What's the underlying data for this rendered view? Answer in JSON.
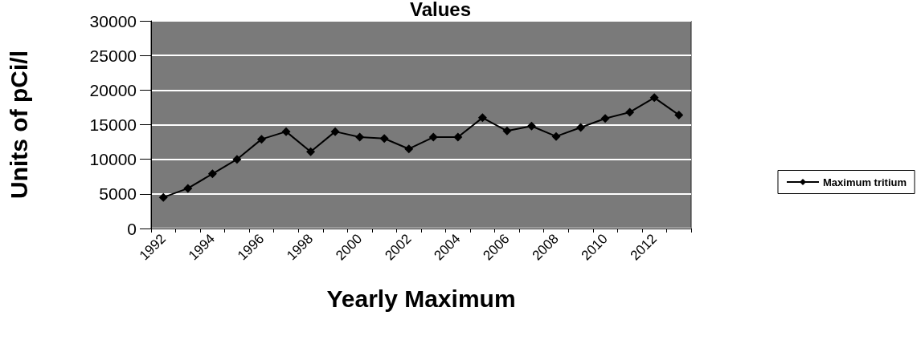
{
  "chart_data": {
    "type": "line",
    "title": "Values",
    "xlabel": "Yearly Maximum",
    "ylabel": "Units of pCi/l",
    "categories": [
      "1992",
      null,
      "1994",
      null,
      "1996",
      null,
      "1998",
      null,
      "2000",
      null,
      "2002",
      null,
      "2004",
      null,
      "2006",
      null,
      "2008",
      null,
      "2010",
      null,
      "2012",
      null
    ],
    "series": [
      {
        "name": "Maximum tritium",
        "color": "#000000",
        "values": [
          4500,
          5800,
          7900,
          10000,
          12900,
          14000,
          11100,
          14000,
          13200,
          13000,
          11500,
          13200,
          13200,
          16000,
          14100,
          14800,
          13300,
          14600,
          15900,
          16800,
          18900,
          16400
        ]
      }
    ],
    "ylim": [
      0,
      30000
    ],
    "yticks": [
      0,
      5000,
      10000,
      15000,
      20000,
      25000,
      30000
    ],
    "grid": "y",
    "legend": "right",
    "marker": "diamond",
    "line_style": "solid"
  }
}
